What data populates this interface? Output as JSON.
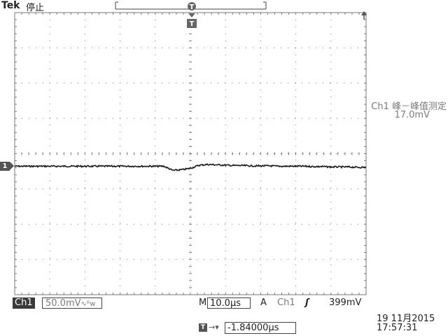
{
  "header": {
    "brand": "Tek",
    "status": "停止"
  },
  "trigger_marker": {
    "label": "T"
  },
  "channel_marker": {
    "label": "1"
  },
  "measurement": {
    "title": "Ch1 峰－峰值测定",
    "value": "17.0mV"
  },
  "bottom_bar": {
    "channel": "Ch1",
    "channel_scale": "50.0mV",
    "bw_symbol": "∿ᴮw",
    "timebase_label": "M",
    "timebase_value": "10.0µs",
    "trigger_mode": "A",
    "trigger_source": "Ch1",
    "trigger_slope": "ʃ",
    "trigger_level": "399mV",
    "trigger_position_icon": "T",
    "trigger_position_arrow": "→▾",
    "trigger_position": "-1.84000µs"
  },
  "datetime": {
    "date": "19 11月2015",
    "time": "17:57:31"
  },
  "colors": {
    "trace": "#1a1a1a",
    "grid": "#777777",
    "marker": "#555555",
    "measurement_text": "#7a7a7a"
  },
  "chart_data": {
    "type": "line",
    "title": "",
    "xlabel": "",
    "ylabel": "",
    "x_divisions": 10,
    "y_divisions": 8,
    "series": [
      {
        "values": [
          0,
          0,
          0,
          0,
          0,
          0,
          0,
          0,
          0,
          0,
          0,
          0,
          0,
          0,
          0,
          0,
          0,
          0,
          -0.12,
          -0.1,
          -0.06,
          0.03,
          0.05,
          0.04,
          0.03,
          0.02,
          0.02,
          0.01,
          0.01,
          0.01,
          0.0,
          0.0,
          0.0,
          0.0,
          -0.01,
          -0.01,
          -0.02,
          -0.02,
          -0.02,
          -0.03,
          -0.03
        ]
      }
    ]
  }
}
